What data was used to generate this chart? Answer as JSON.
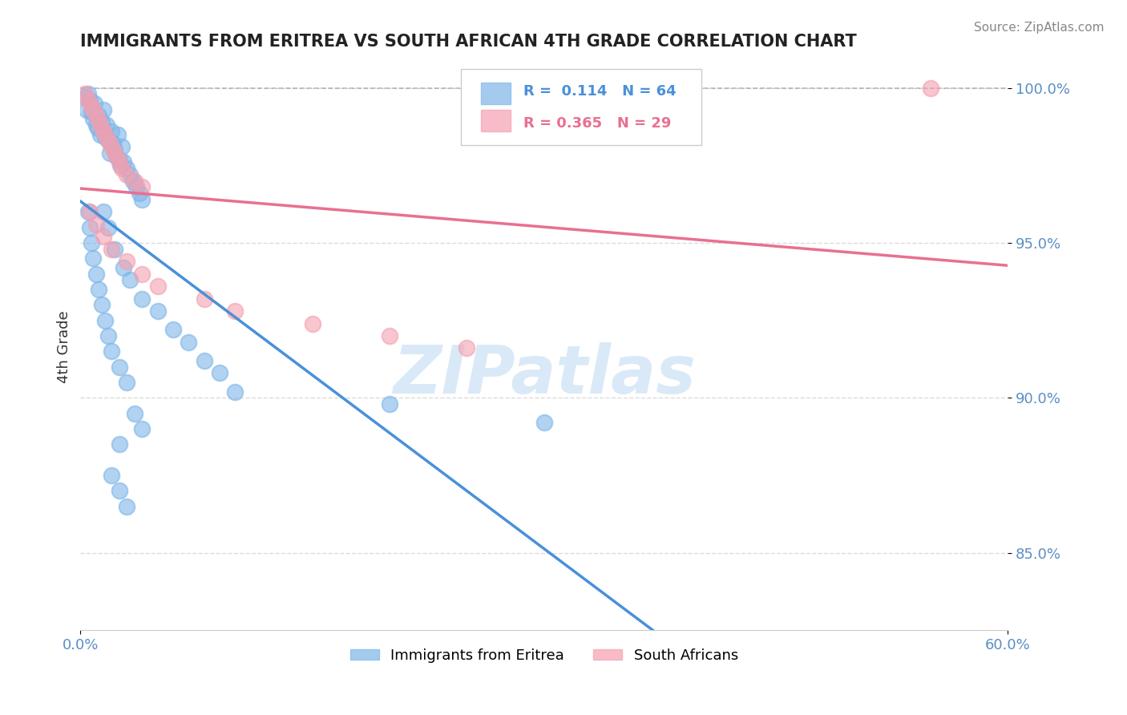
{
  "title": "IMMIGRANTS FROM ERITREA VS SOUTH AFRICAN 4TH GRADE CORRELATION CHART",
  "source": "Source: ZipAtlas.com",
  "ylabel": "4th Grade",
  "legend_label1": "Immigrants from Eritrea",
  "legend_label2": "South Africans",
  "r1": 0.114,
  "n1": 64,
  "r2": 0.365,
  "n2": 29,
  "xmin": 0.0,
  "xmax": 0.6,
  "ymin": 0.825,
  "ymax": 1.008,
  "yticks": [
    0.85,
    0.9,
    0.95,
    1.0
  ],
  "ytick_labels": [
    "85.0%",
    "90.0%",
    "95.0%",
    "100.0%"
  ],
  "color_blue": "#7EB6E8",
  "color_pink": "#F4A0B0",
  "color_blue_line": "#4A90D9",
  "color_pink_line": "#E87090",
  "watermark_color": "#D0E4F5",
  "title_color": "#222222",
  "axis_label_color": "#5B8EC5",
  "blue_scatter": [
    [
      0.003,
      0.997
    ],
    [
      0.004,
      0.993
    ],
    [
      0.005,
      0.998
    ],
    [
      0.006,
      0.996
    ],
    [
      0.007,
      0.992
    ],
    [
      0.008,
      0.99
    ],
    [
      0.009,
      0.995
    ],
    [
      0.01,
      0.988
    ],
    [
      0.011,
      0.987
    ],
    [
      0.012,
      0.991
    ],
    [
      0.013,
      0.985
    ],
    [
      0.014,
      0.989
    ],
    [
      0.015,
      0.993
    ],
    [
      0.016,
      0.984
    ],
    [
      0.017,
      0.988
    ],
    [
      0.018,
      0.983
    ],
    [
      0.019,
      0.979
    ],
    [
      0.02,
      0.986
    ],
    [
      0.021,
      0.982
    ],
    [
      0.022,
      0.98
    ],
    [
      0.023,
      0.978
    ],
    [
      0.024,
      0.985
    ],
    [
      0.025,
      0.977
    ],
    [
      0.026,
      0.975
    ],
    [
      0.027,
      0.981
    ],
    [
      0.028,
      0.976
    ],
    [
      0.03,
      0.974
    ],
    [
      0.032,
      0.972
    ],
    [
      0.034,
      0.97
    ],
    [
      0.036,
      0.968
    ],
    [
      0.038,
      0.966
    ],
    [
      0.04,
      0.964
    ],
    [
      0.005,
      0.96
    ],
    [
      0.006,
      0.955
    ],
    [
      0.007,
      0.95
    ],
    [
      0.008,
      0.945
    ],
    [
      0.01,
      0.94
    ],
    [
      0.012,
      0.935
    ],
    [
      0.014,
      0.93
    ],
    [
      0.016,
      0.925
    ],
    [
      0.018,
      0.92
    ],
    [
      0.02,
      0.915
    ],
    [
      0.025,
      0.91
    ],
    [
      0.03,
      0.905
    ],
    [
      0.035,
      0.895
    ],
    [
      0.04,
      0.89
    ],
    [
      0.02,
      0.875
    ],
    [
      0.025,
      0.87
    ],
    [
      0.03,
      0.865
    ],
    [
      0.025,
      0.885
    ],
    [
      0.015,
      0.96
    ],
    [
      0.018,
      0.955
    ],
    [
      0.022,
      0.948
    ],
    [
      0.028,
      0.942
    ],
    [
      0.032,
      0.938
    ],
    [
      0.04,
      0.932
    ],
    [
      0.05,
      0.928
    ],
    [
      0.06,
      0.922
    ],
    [
      0.07,
      0.918
    ],
    [
      0.08,
      0.912
    ],
    [
      0.09,
      0.908
    ],
    [
      0.1,
      0.902
    ],
    [
      0.2,
      0.898
    ],
    [
      0.3,
      0.892
    ]
  ],
  "pink_scatter": [
    [
      0.003,
      0.998
    ],
    [
      0.005,
      0.996
    ],
    [
      0.007,
      0.994
    ],
    [
      0.009,
      0.992
    ],
    [
      0.011,
      0.99
    ],
    [
      0.013,
      0.988
    ],
    [
      0.015,
      0.986
    ],
    [
      0.017,
      0.984
    ],
    [
      0.019,
      0.982
    ],
    [
      0.021,
      0.98
    ],
    [
      0.023,
      0.978
    ],
    [
      0.025,
      0.976
    ],
    [
      0.027,
      0.974
    ],
    [
      0.03,
      0.972
    ],
    [
      0.035,
      0.97
    ],
    [
      0.04,
      0.968
    ],
    [
      0.006,
      0.96
    ],
    [
      0.01,
      0.956
    ],
    [
      0.015,
      0.952
    ],
    [
      0.02,
      0.948
    ],
    [
      0.03,
      0.944
    ],
    [
      0.04,
      0.94
    ],
    [
      0.05,
      0.936
    ],
    [
      0.08,
      0.932
    ],
    [
      0.1,
      0.928
    ],
    [
      0.15,
      0.924
    ],
    [
      0.2,
      0.92
    ],
    [
      0.25,
      0.916
    ],
    [
      0.55,
      1.0
    ]
  ]
}
